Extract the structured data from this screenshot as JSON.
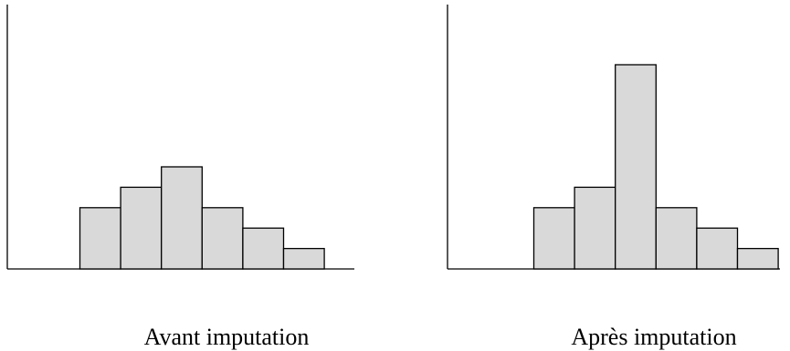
{
  "chart_data": [
    {
      "type": "bar",
      "caption": "Avant imputation",
      "values": [
        3,
        4,
        5,
        3,
        2,
        1
      ],
      "ylim": [
        0,
        10
      ],
      "colors": {
        "bar_fill": "#d9d9d9",
        "bar_stroke": "#000000",
        "axis": "#000000"
      },
      "grid": false
    },
    {
      "type": "bar",
      "caption": "Après imputation",
      "values": [
        3,
        4,
        10,
        3,
        2,
        1
      ],
      "ylim": [
        0,
        10
      ],
      "colors": {
        "bar_fill": "#d9d9d9",
        "bar_stroke": "#000000",
        "axis": "#000000"
      },
      "grid": false
    }
  ]
}
